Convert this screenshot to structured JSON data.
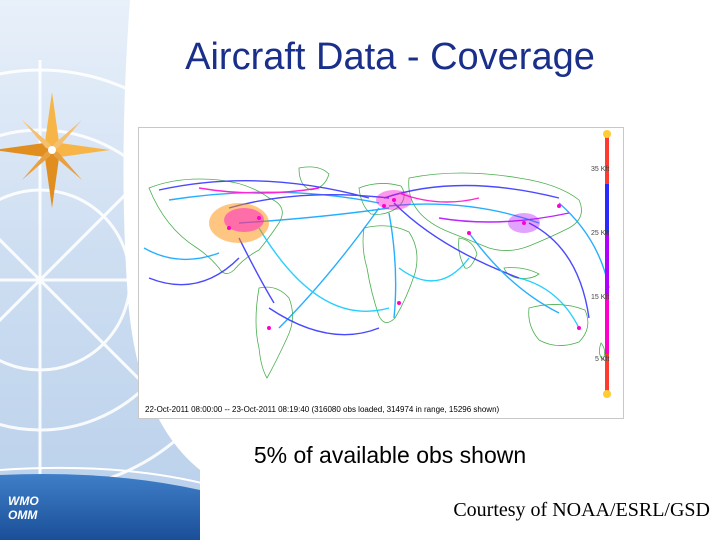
{
  "slide": {
    "title": "Aircraft Data - Coverage",
    "caption": "5% of available obs shown",
    "courtesy": "Courtesy of NOAA/ESRL/GSD"
  },
  "logo": {
    "line1": "WMO",
    "line2": "OMM"
  },
  "map": {
    "caption": "22-Oct-2011 08:00:00 -- 23-Oct-2011 08:19:40 (316080 obs loaded, 314974 in range, 15296 shown)",
    "altitude_scale": {
      "labels": [
        "35 Kft",
        "25 Kft",
        "15 Kft",
        "5 Kft"
      ],
      "colors": [
        "#ff3b30",
        "#ff00cc",
        "#b000ff",
        "#2a2aff",
        "#00a0ff"
      ]
    }
  },
  "colors": {
    "title": "#1a2f8a",
    "sidebar_blue": "#1e63b8",
    "star_orange": "#f0a030"
  }
}
